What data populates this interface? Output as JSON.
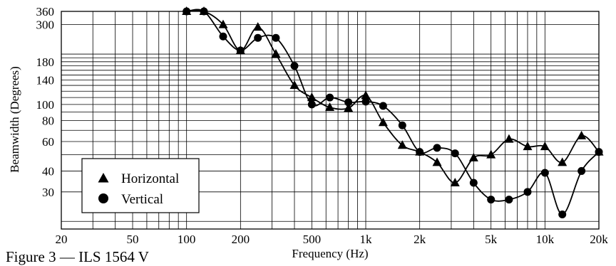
{
  "chart_data": {
    "type": "line",
    "xlabel": "Frequency (Hz)",
    "ylabel": "Beamwidth (Degrees)",
    "x_scale": "log",
    "y_scale": "log",
    "xlim": [
      20,
      20000
    ],
    "ylim": [
      18,
      360
    ],
    "grid": true,
    "x_ticks": [
      {
        "value": 20,
        "label": "20"
      },
      {
        "value": 50,
        "label": "50"
      },
      {
        "value": 100,
        "label": "100"
      },
      {
        "value": 200,
        "label": "200"
      },
      {
        "value": 500,
        "label": "500"
      },
      {
        "value": 1000,
        "label": "1k"
      },
      {
        "value": 2000,
        "label": "2k"
      },
      {
        "value": 5000,
        "label": "5k"
      },
      {
        "value": 10000,
        "label": "10k"
      },
      {
        "value": 20000,
        "label": "20k"
      }
    ],
    "y_ticks": [
      {
        "value": 30,
        "label": "30"
      },
      {
        "value": 40,
        "label": "40"
      },
      {
        "value": 60,
        "label": "60"
      },
      {
        "value": 80,
        "label": "80"
      },
      {
        "value": 100,
        "label": "100"
      },
      {
        "value": 140,
        "label": "140"
      },
      {
        "value": 180,
        "label": "180"
      },
      {
        "value": 300,
        "label": "300"
      },
      {
        "value": 360,
        "label": "360"
      }
    ],
    "legend_position": "bottom-left",
    "series": [
      {
        "name": "Horizontal",
        "marker": "triangle",
        "x": [
          100,
          125,
          160,
          200,
          250,
          315,
          400,
          500,
          630,
          800,
          1000,
          1250,
          1600,
          2000,
          2500,
          3150,
          4000,
          5000,
          6300,
          8000,
          10000,
          12500,
          16000,
          20000
        ],
        "y": [
          360,
          360,
          300,
          210,
          290,
          200,
          130,
          110,
          96,
          95,
          113,
          78,
          57,
          52,
          45,
          34,
          48,
          50,
          62,
          56,
          56,
          45,
          65,
          52
        ]
      },
      {
        "name": "Vertical",
        "marker": "circle",
        "x": [
          100,
          125,
          160,
          200,
          250,
          315,
          400,
          500,
          630,
          800,
          1000,
          1250,
          1600,
          2000,
          2500,
          3150,
          4000,
          5000,
          6300,
          8000,
          10000,
          12500,
          16000,
          20000
        ],
        "y": [
          360,
          360,
          255,
          210,
          250,
          250,
          170,
          100,
          110,
          103,
          104,
          98,
          75,
          52,
          55,
          51,
          34,
          27,
          27,
          30,
          39,
          22,
          40,
          52
        ]
      }
    ]
  },
  "caption": "Figure 3 — ILS 1564 V"
}
